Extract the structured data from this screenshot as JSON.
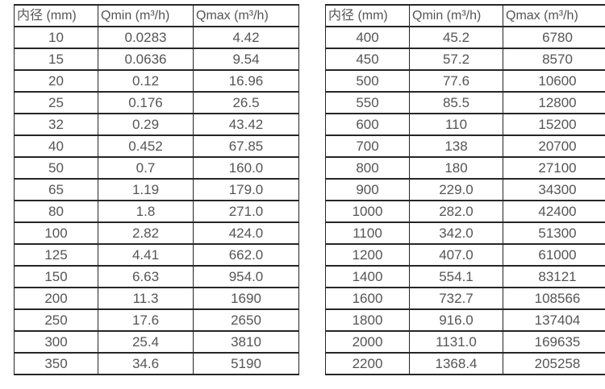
{
  "page": {
    "background_color": "#ffffff",
    "border_color": "#262626",
    "text_color": "#555555"
  },
  "tables": [
    {
      "title": "flow-rates-dn10-dn350",
      "headers": [
        "内径 (mm)",
        "Qmin (m³/h)",
        "Qmax (m³/h)"
      ],
      "rows": [
        [
          "10",
          "0.0283",
          "4.42"
        ],
        [
          "15",
          "0.0636",
          "9.54"
        ],
        [
          "20",
          "0.12",
          "16.96"
        ],
        [
          "25",
          "0.176",
          "26.5"
        ],
        [
          "32",
          "0.29",
          "43.42"
        ],
        [
          "40",
          "0.452",
          "67.85"
        ],
        [
          "50",
          "0.7",
          "160.0"
        ],
        [
          "65",
          "1.19",
          "179.0"
        ],
        [
          "80",
          "1.8",
          "271.0"
        ],
        [
          "100",
          "2.82",
          "424.0"
        ],
        [
          "125",
          "4.41",
          "662.0"
        ],
        [
          "150",
          "6.63",
          "954.0"
        ],
        [
          "200",
          "11.3",
          "1690"
        ],
        [
          "250",
          "17.6",
          "2650"
        ],
        [
          "300",
          "25.4",
          "3810"
        ],
        [
          "350",
          "34.6",
          "5190"
        ]
      ]
    },
    {
      "title": "flow-rates-dn400-dn2200",
      "headers": [
        "内径 (mm)",
        "Qmin (m³/h)",
        "Qmax (m³/h)"
      ],
      "rows": [
        [
          "400",
          "45.2",
          "6780"
        ],
        [
          "450",
          "57.2",
          "8570"
        ],
        [
          "500",
          "77.6",
          "10600"
        ],
        [
          "550",
          "85.5",
          "12800"
        ],
        [
          "600",
          "110",
          "15200"
        ],
        [
          "700",
          "138",
          "20700"
        ],
        [
          "800",
          "180",
          "27100"
        ],
        [
          "900",
          "229.0",
          "34300"
        ],
        [
          "1000",
          "282.0",
          "42400"
        ],
        [
          "1100",
          "342.0",
          "51300"
        ],
        [
          "1200",
          "407.0",
          "61000"
        ],
        [
          "1400",
          "554.1",
          "83121"
        ],
        [
          "1600",
          "732.7",
          "108566"
        ],
        [
          "1800",
          "916.0",
          "137404"
        ],
        [
          "2000",
          "1131.0",
          "169635"
        ],
        [
          "2200",
          "1368.4",
          "205258"
        ]
      ]
    }
  ]
}
